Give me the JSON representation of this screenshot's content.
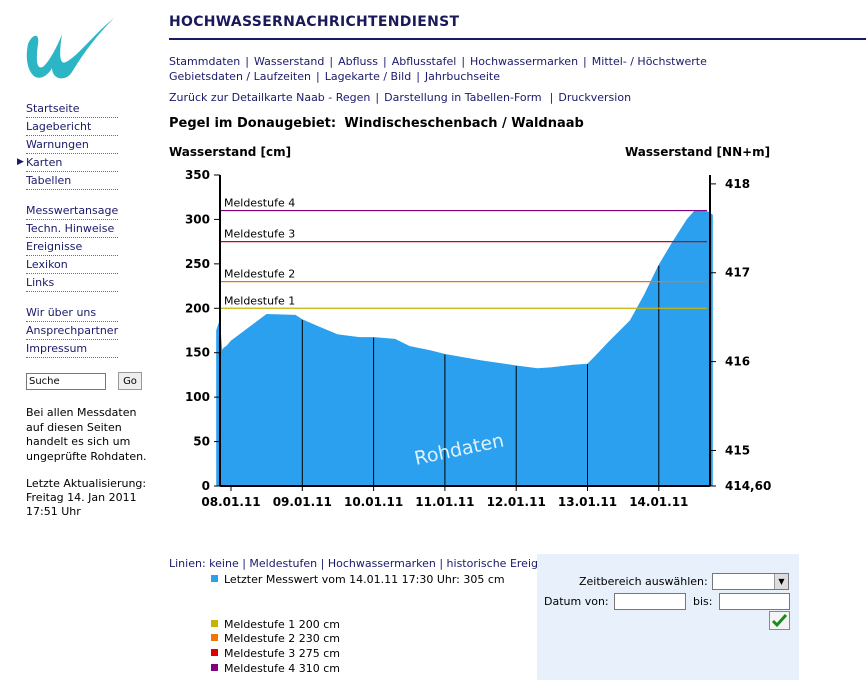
{
  "site_title": "HOCHWASSERNACHRICHTENDIENST",
  "nav_top": {
    "row1": [
      "Stammdaten",
      "Wasserstand",
      "Abfluss",
      "Abflusstafel",
      "Hochwassermarken",
      "Mittel- / Höchstwerte"
    ],
    "row2": [
      "Gebietsdaten / Laufzeiten",
      "Lagekarte / Bild",
      "Jahrbuchseite"
    ],
    "row3": [
      "Zurück zur Detailkarte Naab - Regen",
      "Darstellung in Tabellen-Form",
      "Druckversion"
    ]
  },
  "sidebar": {
    "group1": [
      "Startseite",
      "Lagebericht",
      "Warnungen",
      "Karten",
      "Tabellen"
    ],
    "group2": [
      "Messwertansage",
      "Techn. Hinweise",
      "Ereignisse",
      "Lexikon",
      "Links"
    ],
    "group3": [
      "Wir über uns",
      "Ansprechpartner",
      "Impressum"
    ],
    "search_value": "Suche",
    "search_button": "Go",
    "disclaimer": "Bei allen Messdaten auf diesen Seiten handelt es sich um ungeprüfte Rohdaten.",
    "update_label": "Letzte Aktualisierung:",
    "update_value": "Freitag 14. Jan 2011",
    "update_time": "17:51 Uhr"
  },
  "gauge": {
    "label": "Pegel im Donaugebiet:",
    "name": "Windischeschenbach / Waldnaab"
  },
  "colors": {
    "area": "#2aa0ee",
    "stage1": "#c8b400",
    "stage2": "#f07800",
    "stage3": "#dd0000",
    "stage4": "#800080",
    "link": "#1a1a6a"
  },
  "chart_data": {
    "type": "area",
    "ylabel_left": "Wasserstand [cm]",
    "ylabel_right": "Wasserstand [NN+m]",
    "watermark": "Rohdaten",
    "ylim": [
      0,
      350
    ],
    "y_ticks": [
      0,
      50,
      100,
      150,
      200,
      250,
      300,
      350
    ],
    "right_ticks": [
      "414,60",
      "415",
      "416",
      "417",
      "418"
    ],
    "right_tick_cm": [
      0,
      40,
      140,
      240,
      340
    ],
    "x_ticks": [
      "08.01.11",
      "09.01.11",
      "10.01.11",
      "11.01.11",
      "12.01.11",
      "13.01.11",
      "14.01.11"
    ],
    "x_range_days": [
      -0.2,
      6.75
    ],
    "series": [
      {
        "name": "Wasserstand",
        "x": [
          -0.2,
          -0.16,
          -0.13,
          -0.1,
          -0.05,
          0.0,
          0.2,
          0.5,
          0.9,
          1.0,
          1.2,
          1.5,
          1.8,
          2.0,
          2.3,
          2.5,
          2.8,
          3.0,
          3.5,
          4.0,
          4.3,
          4.5,
          4.8,
          5.0,
          5.1,
          5.3,
          5.6,
          5.8,
          6.0,
          6.2,
          6.4,
          6.5,
          6.6,
          6.7,
          6.75
        ],
        "values": [
          175,
          185,
          152,
          155,
          158,
          163,
          175,
          193,
          192,
          187,
          180,
          170,
          167,
          167,
          165,
          157,
          152,
          148,
          141,
          135,
          132,
          133,
          136,
          137,
          145,
          162,
          186,
          215,
          248,
          275,
          300,
          309,
          310,
          308,
          305
        ]
      }
    ],
    "thresholds": [
      {
        "name": "Meldestufe 1",
        "value": 200
      },
      {
        "name": "Meldestufe 2",
        "value": 230
      },
      {
        "name": "Meldestufe 3",
        "value": 275
      },
      {
        "name": "Meldestufe 4",
        "value": 310
      }
    ]
  },
  "lines_row": {
    "label": "Linien:",
    "options": [
      "keine",
      "Meldestufen",
      "Hochwassermarken",
      "historische Ereignisse"
    ]
  },
  "legend": {
    "latest": "Letzter Messwert vom 14.01.11 17:30 Uhr: 305 cm",
    "stages": [
      "Meldestufe 1 200 cm",
      "Meldestufe 2 230 cm",
      "Meldestufe 3 275 cm",
      "Meldestufe 4 310 cm"
    ]
  },
  "form": {
    "range_label": "Zeitbereich auswählen:",
    "date_from_label": "Datum von:",
    "date_to_label": "bis:"
  }
}
